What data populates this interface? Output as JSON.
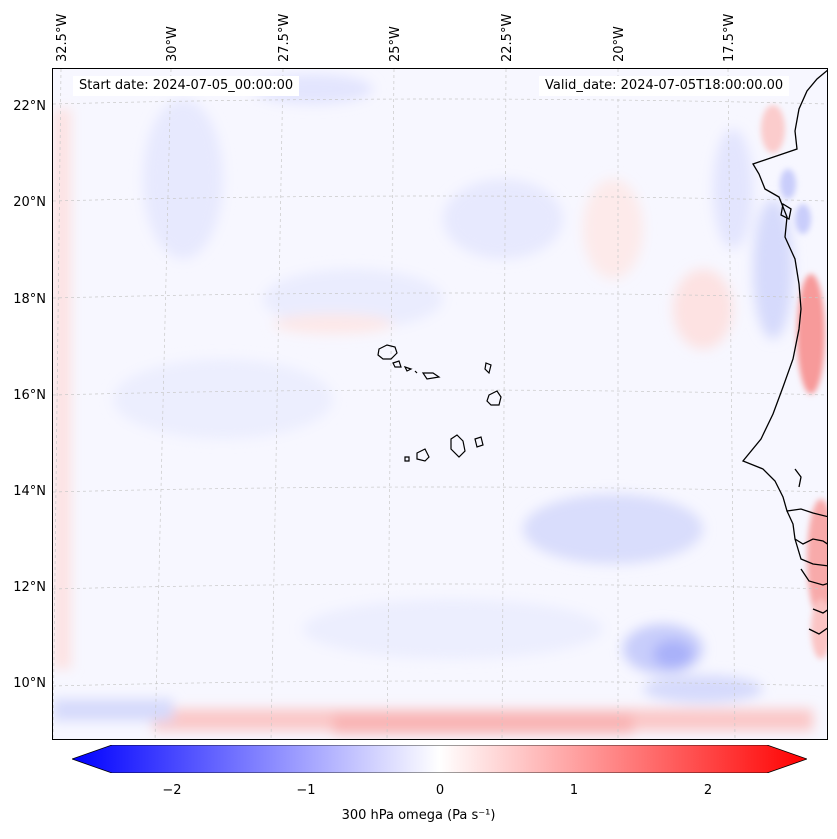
{
  "map": {
    "start_label": "Start date: 2024-07-05_00:00:00",
    "valid_label": "Valid_date: 2024-07-05T18:00:00.00",
    "lon_labels": [
      "32.5°W",
      "30°W",
      "27.5°W",
      "25°W",
      "22.5°W",
      "20°W",
      "17.5°W"
    ],
    "lat_labels": [
      "22°N",
      "20°N",
      "18°N",
      "16°N",
      "14°N",
      "12°N",
      "10°N"
    ]
  },
  "colorbar": {
    "ticks": [
      "−2",
      "−1",
      "0",
      "1",
      "2"
    ],
    "label": "300 hPa omega (Pa s⁻¹)",
    "min_color": "#0000ff",
    "mid_color": "#ffffff",
    "max_color": "#ff0000"
  }
}
